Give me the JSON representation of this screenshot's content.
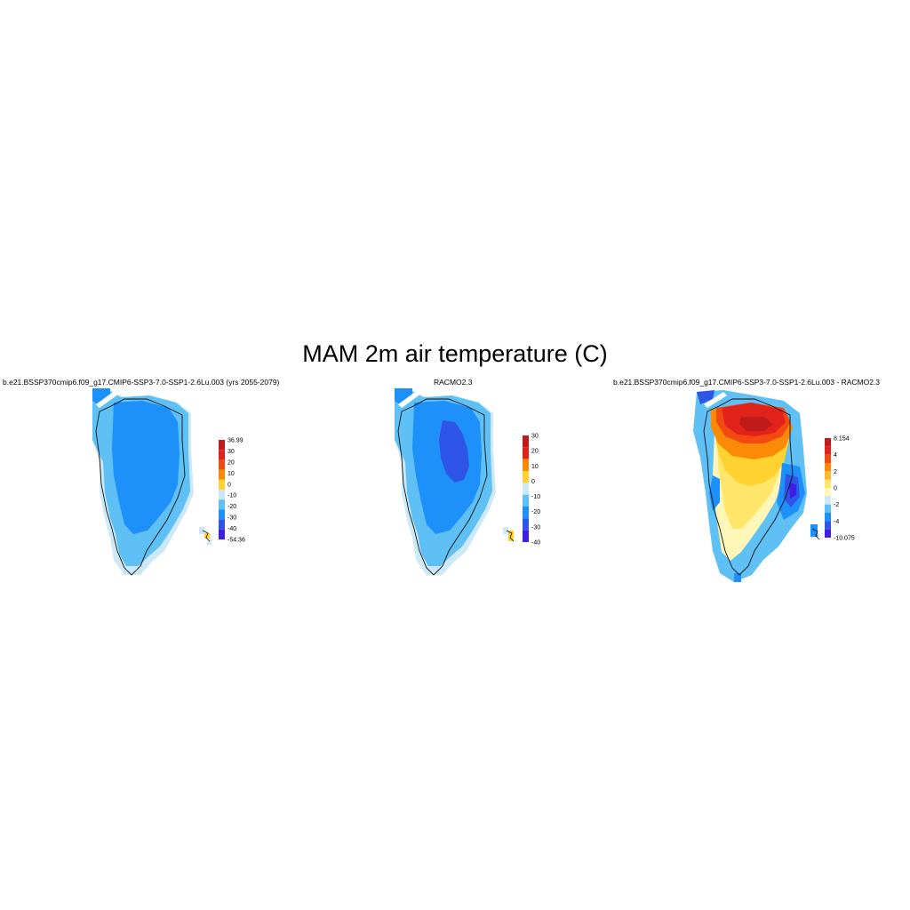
{
  "title": "MAM 2m air temperature (C)",
  "panels": [
    {
      "title": "b.e21.BSSP370cmip6.f09_g17.CMIP6-SSP3-7.0-SSP1-2.6Lu.003 (yrs 2055-2079)",
      "colorbar": {
        "labels": [
          "36.99",
          "30",
          "20",
          "10",
          "0",
          "-10",
          "-20",
          "-30",
          "-40",
          "-54.36"
        ],
        "colors": [
          "#c01b1b",
          "#e2231c",
          "#f24a12",
          "#fb8a06",
          "#ffd230",
          "#cde9f7",
          "#5ec0f5",
          "#1e90fa",
          "#2f55e8",
          "#3e1ee6"
        ]
      }
    },
    {
      "title": "RACMO2.3",
      "colorbar": {
        "labels": [
          "30",
          "20",
          "10",
          "0",
          "-10",
          "-20",
          "-30",
          "-40"
        ],
        "colors": [
          "#c01b1b",
          "#e2231c",
          "#fb8a06",
          "#ffd230",
          "#cde9f7",
          "#5ec0f5",
          "#1e90fa",
          "#2f55e8",
          "#3e1ee6"
        ]
      }
    },
    {
      "title": "b.e21.BSSP370cmip6.f09_g17.CMIP6-SSP3-7.0-SSP1-2.6Lu.003 - RACMO2.3",
      "colorbar": {
        "labels": [
          "8.154",
          "4",
          "2",
          "0",
          "-2",
          "-4",
          "-10.075"
        ],
        "colors": [
          "#c01b1b",
          "#e2231c",
          "#f24a12",
          "#fb8a06",
          "#ffb631",
          "#ffe66b",
          "#fff6b8",
          "#cde9f7",
          "#5ec0f5",
          "#1e90fa",
          "#2f55e8",
          "#3e1ee6"
        ]
      }
    }
  ]
}
